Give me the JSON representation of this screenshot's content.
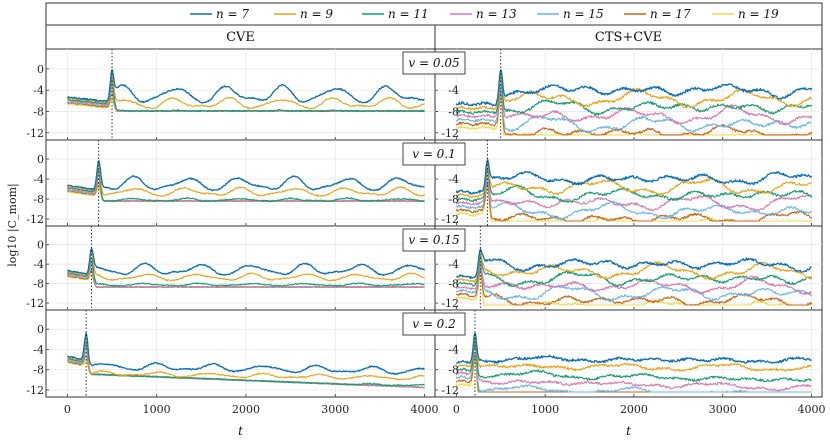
{
  "chart_data": {
    "type": "line",
    "layout": "4 rows x 2 columns of small-multiple log plots",
    "legend": {
      "placement": "top",
      "entries": [
        {
          "label": "n = 7",
          "color": "#0b6fb4"
        },
        {
          "label": "n = 9",
          "color": "#e8a317"
        },
        {
          "label": "n = 11",
          "color": "#139b6e"
        },
        {
          "label": "n = 13",
          "color": "#d77ab0"
        },
        {
          "label": "n = 15",
          "color": "#67b7e8"
        },
        {
          "label": "n = 17",
          "color": "#cc6416"
        },
        {
          "label": "n = 19",
          "color": "#eddc4b"
        }
      ]
    },
    "column_titles": [
      "CVE",
      "CTS+CVE"
    ],
    "row_labels": [
      "v = 0.05",
      "v = 0.1",
      "v = 0.15",
      "v = 0.2"
    ],
    "xlabel": "t",
    "ylabel": "log10 |C_mom|",
    "xlim": [
      -150,
      4050
    ],
    "ylim": [
      -12.6,
      2.6
    ],
    "xticks": [
      0,
      1000,
      2000,
      3000,
      4000
    ],
    "xtick_labels": [
      "0",
      "1000",
      "2000",
      "3000",
      "4000"
    ],
    "yticks": [
      0,
      -4,
      -8,
      -12
    ],
    "ytick_labels": [
      "0",
      "-4",
      "-8",
      "-12"
    ],
    "peak_times": [
      500,
      350,
      270,
      210
    ],
    "annotations": "dotted vertical line marks the spike time in every panel",
    "grid": true
  }
}
